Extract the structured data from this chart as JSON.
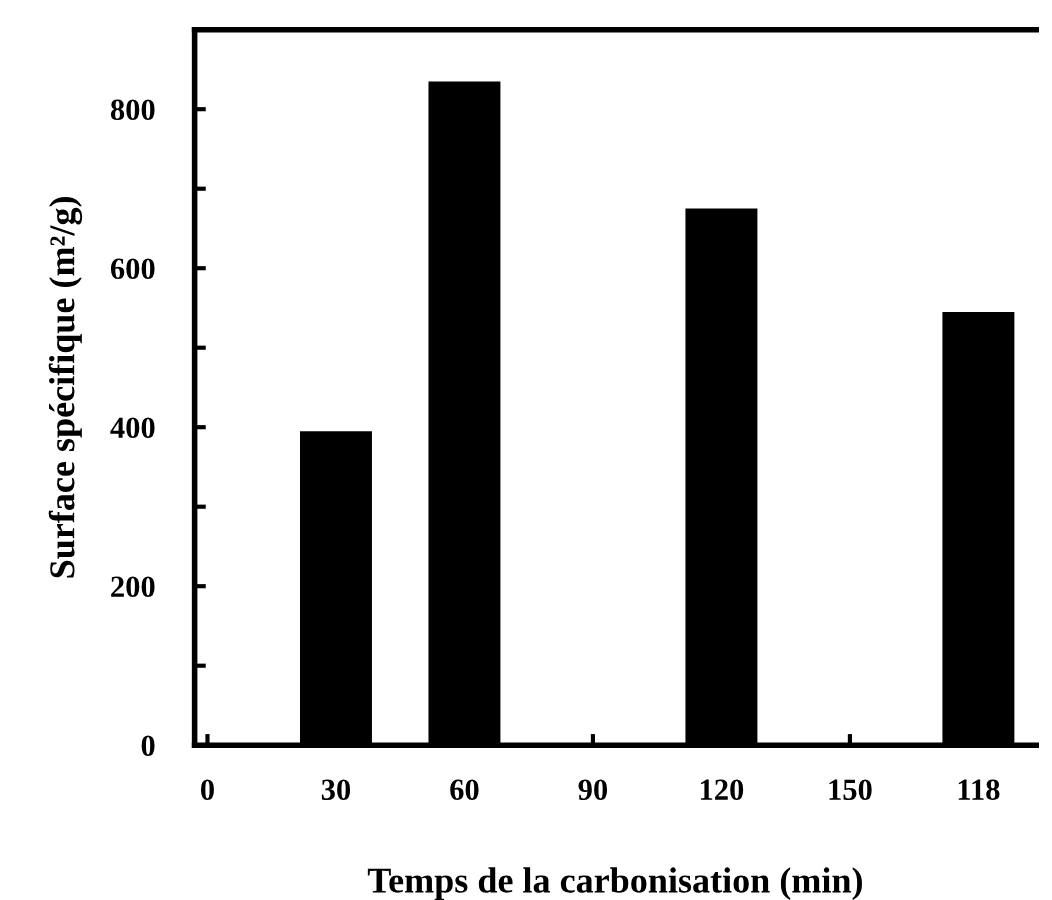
{
  "chart_data": {
    "type": "bar",
    "xlabel": "Temps de la carbonisation (min)",
    "ylabel": "Surface spécifique (m²/g)",
    "categories": [
      "0",
      "30",
      "60",
      "90",
      "120",
      "150",
      "118"
    ],
    "values": [
      null,
      395,
      835,
      null,
      675,
      null,
      545
    ],
    "color": "#000000",
    "ylim": [
      0,
      900
    ],
    "yticks": [
      0,
      {
        "value": 100,
        "label": null
      },
      200,
      {
        "value": 300,
        "label": null
      },
      400,
      {
        "value": 500,
        "label": null
      },
      600,
      {
        "value": 700,
        "label": null
      },
      800
    ],
    "grid": false,
    "legend": false
  }
}
